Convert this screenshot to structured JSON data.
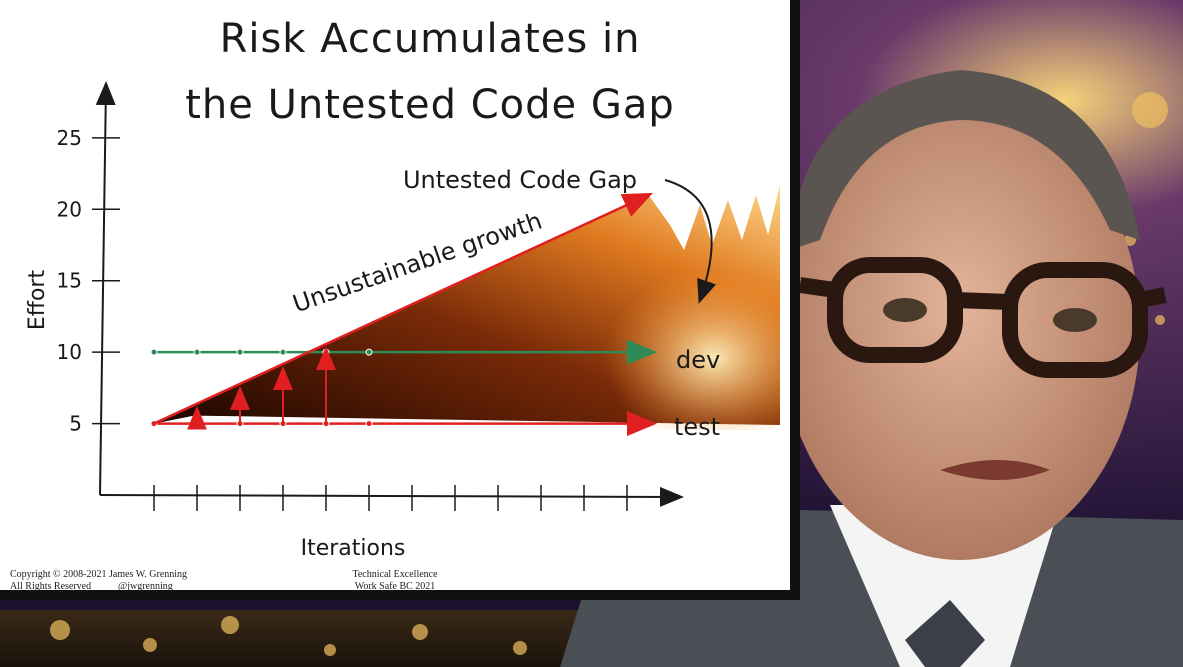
{
  "slide": {
    "title_line1": "Risk Accumulates in",
    "title_line2": "the Untested Code Gap",
    "footer_left_line1": "Copyright © 2008-2021 James W. Grenning",
    "footer_left_line2": "All Rights Reserved",
    "footer_left_handle": "@jwgrenning",
    "footer_center_line1": "Technical Excellence",
    "footer_center_line2": "Work Safe BC 2021"
  },
  "chart_data": {
    "type": "line",
    "title": "Risk Accumulates in the Untested Code Gap",
    "xlabel": "Iterations",
    "ylabel": "Effort",
    "ylim": [
      0,
      28
    ],
    "y_ticks": [
      5,
      10,
      15,
      20,
      25
    ],
    "x_tick_count": 12,
    "series": [
      {
        "name": "dev",
        "values": [
          10,
          10,
          10,
          10,
          10,
          10,
          10,
          10,
          10,
          10,
          10,
          10
        ],
        "color": "#2e8b57"
      },
      {
        "name": "test",
        "values": [
          5,
          5,
          5,
          5,
          5,
          5,
          5,
          5,
          5,
          5,
          5,
          5
        ],
        "color": "#e02020"
      }
    ],
    "growth_line": {
      "label": "Unsustainable growth",
      "from": [
        1,
        5
      ],
      "to": [
        12.5,
        21
      ],
      "color": "#e02020"
    },
    "annotations": [
      "Untested Code Gap",
      "Unsustainable growth",
      "dev",
      "test"
    ],
    "grid": false
  },
  "colors": {
    "fire_dark": "#2a0a00",
    "fire_mid": "#c44a10",
    "fire_bright": "#ffd27a",
    "suit": "#4a4e55",
    "skin": "#d9a68a"
  }
}
